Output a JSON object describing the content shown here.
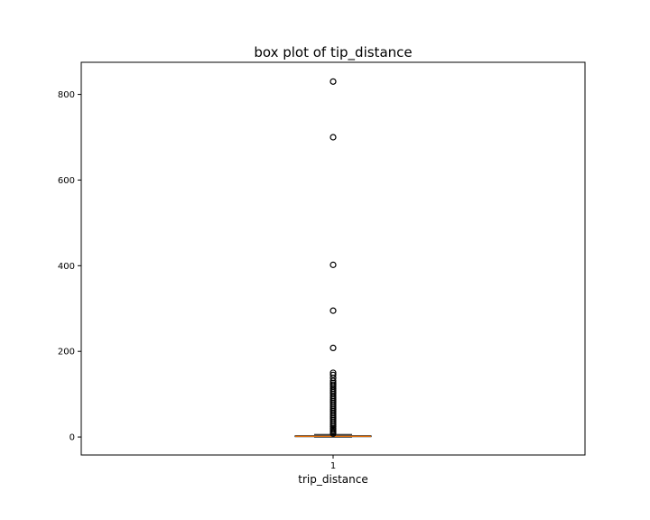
{
  "chart_data": {
    "type": "box",
    "title": "box plot of tip_distance",
    "xlabel": "trip_distance",
    "ylabel": "",
    "categories": [
      "1"
    ],
    "ylim": [
      -42,
      875
    ],
    "yticks": [
      0,
      200,
      400,
      600,
      800
    ],
    "grid": false,
    "series": [
      {
        "box": {
          "min": 0,
          "q1": 0.9,
          "median": 1.6,
          "q3": 2.9,
          "max": 6.0
        },
        "outliers": [
          830,
          700,
          402,
          295,
          208,
          150,
          145,
          138,
          131,
          126,
          122,
          118,
          113,
          109,
          105,
          101,
          96,
          92,
          88,
          84,
          80,
          76,
          72,
          68,
          64,
          60,
          56,
          52,
          48,
          44,
          40,
          36,
          32,
          28,
          24,
          20,
          17,
          14,
          11,
          8
        ]
      }
    ],
    "colors": {
      "median": "#ff7f0e",
      "box": "#000000",
      "outlier_edge": "#000000"
    }
  }
}
